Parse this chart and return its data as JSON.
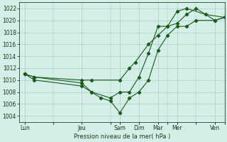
{
  "xlabel": "Pression niveau de la mer( hPa )",
  "xtick_labels": [
    "Lun",
    "Jeu",
    "Sam",
    "Dim",
    "Mar",
    "Mer",
    "Ven"
  ],
  "xtick_positions": [
    0,
    3,
    5,
    6,
    7,
    8,
    10
  ],
  "xlim": [
    -0.3,
    10.5
  ],
  "ylim": [
    1003,
    1023
  ],
  "yticks": [
    1004,
    1006,
    1008,
    1010,
    1012,
    1014,
    1016,
    1018,
    1020,
    1022
  ],
  "background_color": "#d4eee8",
  "grid_color": "#aaccc4",
  "line_color": "#1a5c1a",
  "line1_x": [
    0,
    0.5,
    3.0,
    3.5,
    5.0,
    5.5,
    5.8,
    6.5,
    7.0,
    7.5,
    8.0,
    8.5,
    9.0,
    10.0,
    10.5
  ],
  "line1_y": [
    1011,
    1010.5,
    1010,
    1010,
    1010,
    1012,
    1013,
    1016,
    1017.5,
    1019,
    1019.5,
    1021,
    1022,
    1020,
    1020.5
  ],
  "line2_x": [
    0,
    0.5,
    3.0,
    3.5,
    4.5,
    5.0,
    5.5,
    6.0,
    6.5,
    7.0,
    7.5,
    8.0,
    8.5,
    9.5,
    10.5
  ],
  "line2_y": [
    1011,
    1010.5,
    1009.5,
    1008,
    1007,
    1008,
    1008,
    1010.5,
    1014.5,
    1019,
    1019,
    1021.5,
    1022,
    1021,
    1020.5
  ],
  "line3_x": [
    0,
    0.5,
    3.0,
    3.5,
    4.0,
    4.5,
    5.0,
    5.5,
    6.0,
    6.5,
    7.0,
    7.5,
    8.0,
    8.5,
    9.0,
    10.0,
    10.5
  ],
  "line3_y": [
    1011,
    1010,
    1009,
    1008,
    1007,
    1006.5,
    1004.5,
    1007,
    1008,
    1010,
    1015,
    1017.5,
    1019,
    1019,
    1020,
    1020,
    1020.5
  ]
}
